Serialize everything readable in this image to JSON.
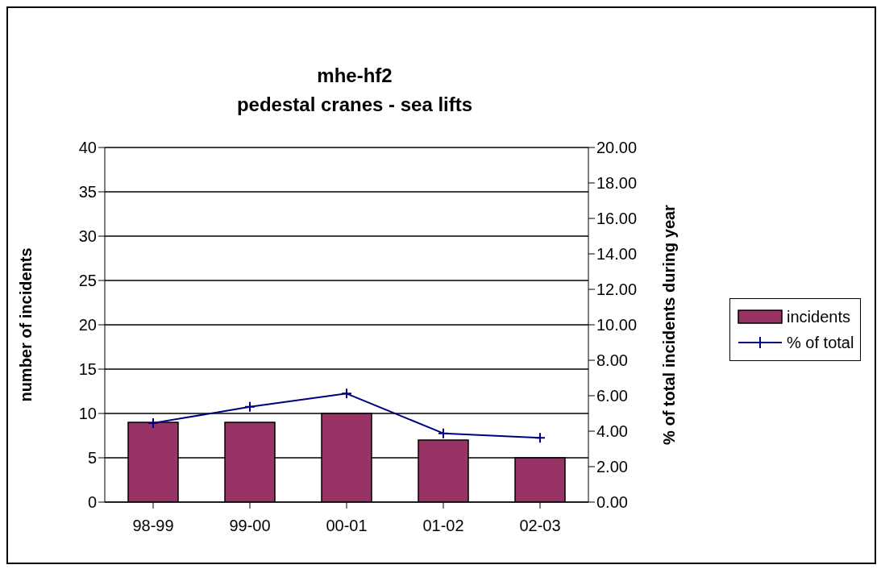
{
  "chart_data": {
    "type": "bar",
    "title": "mhe-hf2",
    "subtitle": "pedestal cranes - sea lifts",
    "ylabel": "number of incidents",
    "y2label": "% of total incidents during year",
    "categories": [
      "98-99",
      "99-00",
      "00-01",
      "01-02",
      "02-03"
    ],
    "series": [
      {
        "name": "incidents",
        "color": "#993366",
        "values": [
          9,
          9,
          10,
          7,
          5
        ]
      },
      {
        "name": "% of total",
        "type": "line",
        "axis": "y2",
        "color": "#000080",
        "marker": "cross",
        "values": [
          4.46,
          5.37,
          6.12,
          3.88,
          3.63
        ]
      }
    ],
    "ylim": [
      0,
      40
    ],
    "yticks": [
      0,
      5,
      10,
      15,
      20,
      25,
      30,
      35,
      40
    ],
    "y2lim": [
      0,
      20
    ],
    "y2ticks": [
      {
        "value": 0,
        "label": "0.00"
      },
      {
        "value": 2,
        "label": "2.00"
      },
      {
        "value": 4,
        "label": "4.00"
      },
      {
        "value": 6,
        "label": "6.00"
      },
      {
        "value": 8,
        "label": "8.00"
      },
      {
        "value": 10,
        "label": "10.00"
      },
      {
        "value": 12,
        "label": "12.00"
      },
      {
        "value": 14,
        "label": "14.00"
      },
      {
        "value": 16,
        "label": "16.00"
      },
      {
        "value": 18,
        "label": "18.00"
      },
      {
        "value": 20,
        "label": "20.00"
      }
    ],
    "grid": "y",
    "legend": "right"
  }
}
